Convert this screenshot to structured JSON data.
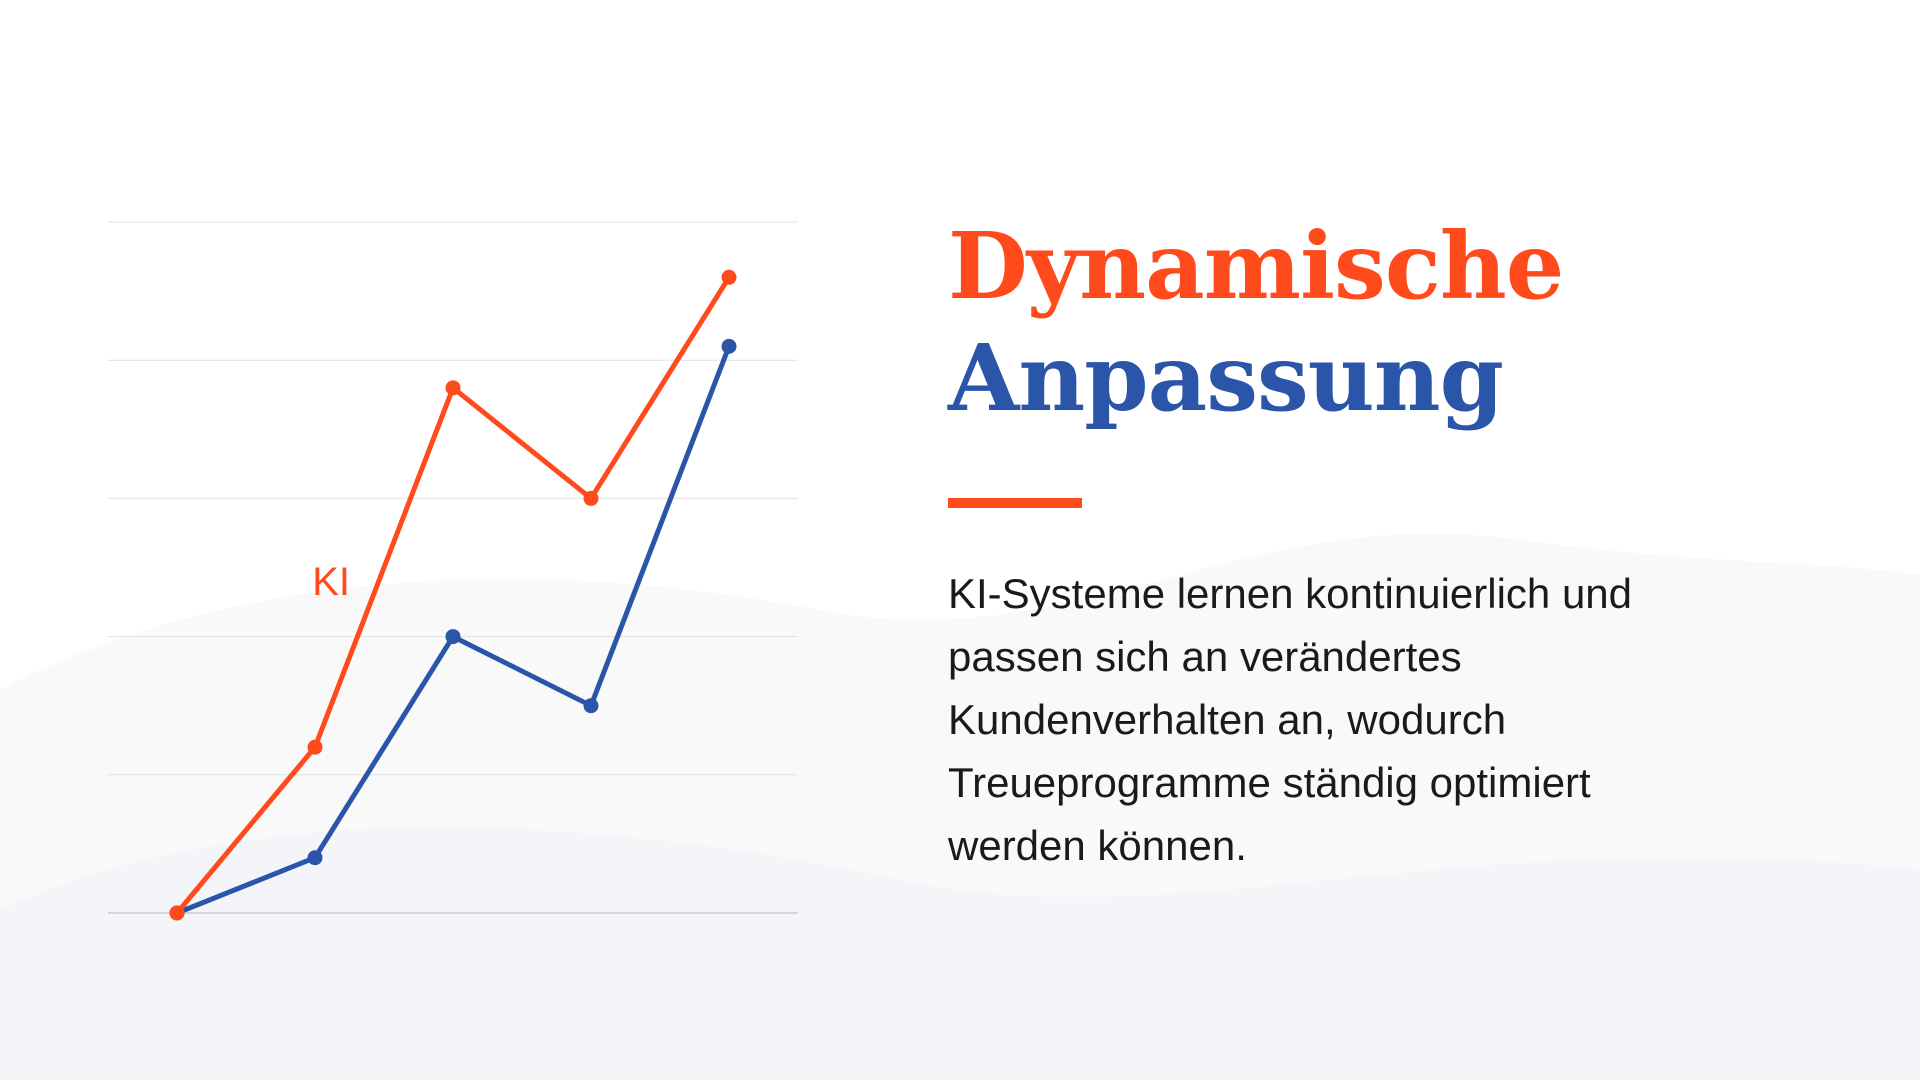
{
  "slide": {
    "title_line1": "Dynamische",
    "title_line2": "Anpassung",
    "body": "KI-Systeme lernen kontinuierlich und passen sich an verändertes Kundenverhalten an, wodurch Treueprogramme ständig optimiert werden können."
  },
  "colors": {
    "accent": "#ff4a1c",
    "brand_blue": "#2a55a8",
    "text": "#1a1a1a",
    "grid": "#e2e2e2",
    "background_wave": "#f4f5f8"
  },
  "chart_data": {
    "type": "line",
    "title": "",
    "xlabel": "",
    "ylabel": "",
    "x": [
      1,
      2,
      3,
      4,
      5
    ],
    "xlim": [
      0.5,
      5.5
    ],
    "ylim": [
      0,
      5
    ],
    "grid": true,
    "axis_ticks_visible": false,
    "series": [
      {
        "name": "KI",
        "color": "#ff4a1c",
        "values": [
          0,
          1.2,
          3.8,
          3.0,
          4.6
        ]
      },
      {
        "name": "",
        "color": "#2a55a8",
        "values": [
          0,
          0.4,
          2.0,
          1.5,
          4.1
        ]
      }
    ]
  }
}
